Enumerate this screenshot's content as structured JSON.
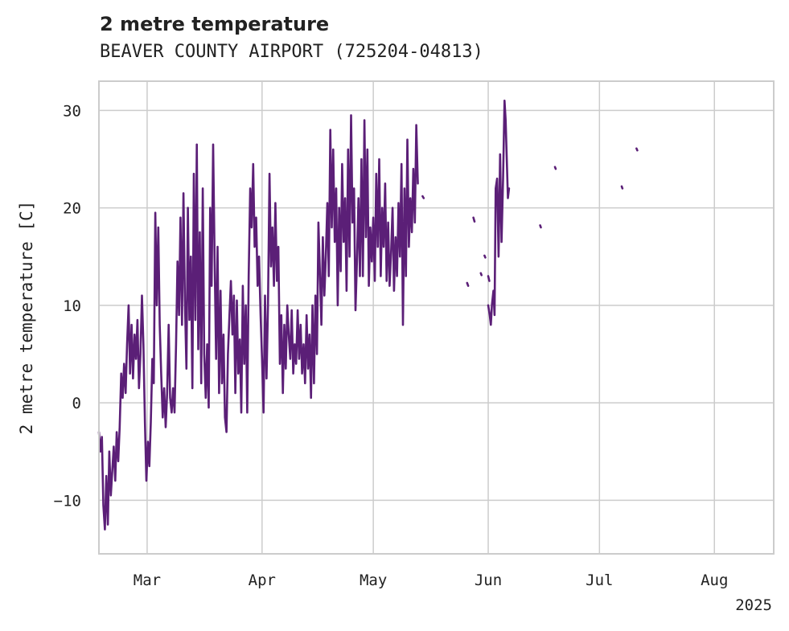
{
  "chart_data": {
    "type": "line",
    "title": "2 metre temperature",
    "subtitle": "BEAVER COUNTY AIRPORT (725204-04813)",
    "xlabel": "",
    "ylabel": "2 metre temperature [C]",
    "year_label": "2025",
    "x_unit": "day of year 2025",
    "xlim": [
      47,
      229
    ],
    "ylim": [
      -15.5,
      33
    ],
    "yticks": [
      -10,
      0,
      10,
      20,
      30
    ],
    "xticks": [
      {
        "label": "Mar",
        "day": 60
      },
      {
        "label": "Apr",
        "day": 91
      },
      {
        "label": "May",
        "day": 121
      },
      {
        "label": "Jun",
        "day": 152
      },
      {
        "label": "Jul",
        "day": 182
      },
      {
        "label": "Aug",
        "day": 213
      }
    ],
    "grid": true,
    "line_color": "#5b1f77",
    "series": [
      {
        "name": "2 metre temperature",
        "segments": [
          [
            [
              47.0,
              -3.0
            ],
            [
              47.4,
              -5.0
            ],
            [
              47.8,
              -3.5
            ],
            [
              48.2,
              -10.5
            ],
            [
              48.6,
              -13.0
            ],
            [
              49.0,
              -7.5
            ],
            [
              49.4,
              -12.5
            ],
            [
              49.8,
              -5.0
            ],
            [
              50.2,
              -9.5
            ],
            [
              50.6,
              -7.0
            ],
            [
              51.0,
              -4.5
            ],
            [
              51.4,
              -8.0
            ],
            [
              51.8,
              -3.0
            ],
            [
              52.2,
              -6.0
            ],
            [
              52.6,
              -2.5
            ],
            [
              53.0,
              3.0
            ],
            [
              53.4,
              0.5
            ],
            [
              53.8,
              4.0
            ],
            [
              54.2,
              1.0
            ],
            [
              54.6,
              6.0
            ],
            [
              55.0,
              10.0
            ],
            [
              55.4,
              3.0
            ],
            [
              55.8,
              8.0
            ],
            [
              56.2,
              2.5
            ],
            [
              56.6,
              7.0
            ],
            [
              57.0,
              4.5
            ],
            [
              57.4,
              8.5
            ],
            [
              57.8,
              1.5
            ],
            [
              58.2,
              5.0
            ],
            [
              58.6,
              11.0
            ],
            [
              59.0,
              6.0
            ],
            [
              59.4,
              -2.0
            ],
            [
              59.8,
              -8.0
            ],
            [
              60.2,
              -4.0
            ],
            [
              60.6,
              -6.5
            ],
            [
              61.0,
              -2.0
            ],
            [
              61.4,
              4.5
            ],
            [
              61.8,
              2.0
            ],
            [
              62.2,
              19.5
            ],
            [
              62.6,
              10.0
            ],
            [
              63.0,
              18.0
            ],
            [
              63.4,
              8.0
            ],
            [
              63.8,
              3.0
            ],
            [
              64.2,
              -1.5
            ],
            [
              64.6,
              1.5
            ],
            [
              65.0,
              -2.5
            ],
            [
              65.4,
              1.0
            ],
            [
              65.8,
              8.0
            ],
            [
              66.2,
              0.5
            ],
            [
              66.6,
              -1.0
            ],
            [
              67.0,
              1.5
            ],
            [
              67.4,
              -1.0
            ],
            [
              67.8,
              6.0
            ],
            [
              68.2,
              14.5
            ],
            [
              68.6,
              9.0
            ],
            [
              69.0,
              19.0
            ],
            [
              69.4,
              8.0
            ],
            [
              69.8,
              21.5
            ],
            [
              70.2,
              10.5
            ],
            [
              70.6,
              3.5
            ],
            [
              71.0,
              20.0
            ],
            [
              71.4,
              8.5
            ],
            [
              71.8,
              15.0
            ],
            [
              72.2,
              1.5
            ],
            [
              72.6,
              23.5
            ],
            [
              73.0,
              8.5
            ],
            [
              73.4,
              26.5
            ],
            [
              73.8,
              5.5
            ],
            [
              74.2,
              17.5
            ],
            [
              74.6,
              2.0
            ],
            [
              75.0,
              22.0
            ],
            [
              75.4,
              5.0
            ],
            [
              75.8,
              0.5
            ],
            [
              76.2,
              6.0
            ],
            [
              76.6,
              -0.5
            ],
            [
              77.0,
              20.0
            ],
            [
              77.4,
              12.0
            ],
            [
              77.8,
              26.5
            ],
            [
              78.2,
              15.0
            ],
            [
              78.6,
              4.5
            ],
            [
              79.0,
              16.0
            ],
            [
              79.4,
              1.0
            ],
            [
              79.8,
              11.5
            ],
            [
              80.2,
              2.0
            ],
            [
              80.6,
              7.0
            ],
            [
              81.0,
              -1.5
            ],
            [
              81.4,
              -3.0
            ],
            [
              81.8,
              5.0
            ],
            [
              82.2,
              9.0
            ],
            [
              82.6,
              12.5
            ],
            [
              83.0,
              7.0
            ],
            [
              83.4,
              11.0
            ],
            [
              83.8,
              1.0
            ],
            [
              84.2,
              10.5
            ],
            [
              84.6,
              3.0
            ],
            [
              85.0,
              6.5
            ],
            [
              85.4,
              -1.0
            ],
            [
              85.8,
              12.0
            ],
            [
              86.2,
              4.0
            ],
            [
              86.6,
              10.0
            ],
            [
              87.0,
              -1.0
            ],
            [
              87.4,
              13.0
            ],
            [
              87.8,
              22.0
            ],
            [
              88.2,
              18.0
            ],
            [
              88.6,
              24.5
            ],
            [
              89.0,
              16.0
            ],
            [
              89.4,
              19.0
            ],
            [
              89.8,
              12.0
            ],
            [
              90.2,
              15.0
            ],
            [
              90.6,
              9.0
            ],
            [
              91.0,
              4.5
            ],
            [
              91.4,
              -1.0
            ],
            [
              91.8,
              11.0
            ],
            [
              92.2,
              2.5
            ],
            [
              92.6,
              10.0
            ],
            [
              93.0,
              23.5
            ],
            [
              93.4,
              14.0
            ],
            [
              93.8,
              18.0
            ],
            [
              94.2,
              12.0
            ],
            [
              94.6,
              20.5
            ],
            [
              95.0,
              12.5
            ],
            [
              95.4,
              16.0
            ],
            [
              95.8,
              4.0
            ],
            [
              96.2,
              9.0
            ],
            [
              96.6,
              1.0
            ],
            [
              97.0,
              8.0
            ],
            [
              97.4,
              3.5
            ],
            [
              97.8,
              10.0
            ],
            [
              98.2,
              7.0
            ],
            [
              98.6,
              4.5
            ],
            [
              99.0,
              9.5
            ],
            [
              99.4,
              3.0
            ],
            [
              99.8,
              6.0
            ],
            [
              100.2,
              4.0
            ],
            [
              100.6,
              9.5
            ],
            [
              101.0,
              4.5
            ],
            [
              101.4,
              8.0
            ],
            [
              101.8,
              3.0
            ],
            [
              102.2,
              6.0
            ],
            [
              102.6,
              2.0
            ],
            [
              103.0,
              9.0
            ],
            [
              103.4,
              3.5
            ],
            [
              103.8,
              7.0
            ],
            [
              104.2,
              0.5
            ],
            [
              104.6,
              10.0
            ],
            [
              105.0,
              2.0
            ],
            [
              105.4,
              11.0
            ],
            [
              105.8,
              5.0
            ],
            [
              106.2,
              18.5
            ],
            [
              106.6,
              13.5
            ],
            [
              107.0,
              8.0
            ],
            [
              107.4,
              17.0
            ],
            [
              107.8,
              11.0
            ],
            [
              108.2,
              15.0
            ],
            [
              108.6,
              20.5
            ],
            [
              109.0,
              13.0
            ],
            [
              109.4,
              28.0
            ],
            [
              109.8,
              18.0
            ],
            [
              110.2,
              26.0
            ],
            [
              110.6,
              16.5
            ],
            [
              111.0,
              22.0
            ],
            [
              111.4,
              10.0
            ],
            [
              111.8,
              20.0
            ],
            [
              112.2,
              13.5
            ],
            [
              112.6,
              24.5
            ],
            [
              113.0,
              16.5
            ],
            [
              113.4,
              21.0
            ],
            [
              113.8,
              11.5
            ],
            [
              114.2,
              26.0
            ],
            [
              114.6,
              15.0
            ],
            [
              115.0,
              29.5
            ],
            [
              115.4,
              18.5
            ],
            [
              115.8,
              22.0
            ],
            [
              116.2,
              9.5
            ],
            [
              116.6,
              14.5
            ],
            [
              117.0,
              21.0
            ],
            [
              117.4,
              13.0
            ],
            [
              117.8,
              25.0
            ],
            [
              118.2,
              13.0
            ],
            [
              118.6,
              29.0
            ],
            [
              119.0,
              17.0
            ],
            [
              119.4,
              26.0
            ],
            [
              119.8,
              12.0
            ],
            [
              120.2,
              18.0
            ],
            [
              120.6,
              14.5
            ],
            [
              121.0,
              19.0
            ],
            [
              121.4,
              12.5
            ],
            [
              121.8,
              23.5
            ],
            [
              122.2,
              16.0
            ],
            [
              122.6,
              25.0
            ],
            [
              123.0,
              13.0
            ],
            [
              123.4,
              20.0
            ],
            [
              123.8,
              16.0
            ],
            [
              124.2,
              22.5
            ],
            [
              124.6,
              12.5
            ],
            [
              125.0,
              18.5
            ],
            [
              125.4,
              12.0
            ],
            [
              125.8,
              15.5
            ],
            [
              126.2,
              20.0
            ],
            [
              126.6,
              11.5
            ],
            [
              127.0,
              17.0
            ],
            [
              127.4,
              13.0
            ],
            [
              127.8,
              20.5
            ],
            [
              128.2,
              15.0
            ],
            [
              128.6,
              24.5
            ],
            [
              129.0,
              8.0
            ],
            [
              129.4,
              22.0
            ],
            [
              129.8,
              13.0
            ],
            [
              130.2,
              27.0
            ],
            [
              130.6,
              16.0
            ],
            [
              131.0,
              21.0
            ],
            [
              131.4,
              17.5
            ],
            [
              131.8,
              24.0
            ],
            [
              132.2,
              18.5
            ],
            [
              132.6,
              28.5
            ],
            [
              133.0,
              22.5
            ]
          ],
          [
            [
              134.3,
              21.2
            ],
            [
              134.6,
              21.0
            ]
          ],
          [
            [
              146.3,
              12.3
            ],
            [
              146.6,
              12.0
            ]
          ],
          [
            [
              148.0,
              19.0
            ],
            [
              148.3,
              18.6
            ]
          ],
          [
            [
              150.0,
              13.3
            ],
            [
              150.2,
              13.1
            ]
          ],
          [
            [
              151.0,
              15.1
            ],
            [
              151.2,
              14.9
            ]
          ],
          [
            [
              152.0,
              13.0
            ],
            [
              152.3,
              12.5
            ]
          ],
          [
            [
              152.0,
              10.0
            ],
            [
              152.4,
              9.0
            ],
            [
              152.7,
              8.0
            ],
            [
              153.0,
              10.0
            ],
            [
              153.4,
              11.5
            ],
            [
              153.7,
              9.0
            ],
            [
              154.0,
              22.0
            ],
            [
              154.4,
              23.0
            ],
            [
              154.8,
              15.0
            ],
            [
              155.2,
              25.5
            ],
            [
              155.6,
              16.5
            ],
            [
              156.0,
              23.0
            ],
            [
              156.4,
              31.0
            ],
            [
              156.7,
              29.0
            ],
            [
              157.0,
              25.0
            ],
            [
              157.3,
              21.0
            ],
            [
              157.6,
              22.0
            ]
          ],
          [
            [
              166.0,
              18.2
            ],
            [
              166.2,
              18.0
            ]
          ],
          [
            [
              170.0,
              24.2
            ],
            [
              170.2,
              24.0
            ]
          ],
          [
            [
              188.0,
              22.2
            ],
            [
              188.2,
              22.0
            ]
          ],
          [
            [
              192.0,
              26.1
            ],
            [
              192.2,
              25.9
            ]
          ]
        ]
      }
    ]
  }
}
